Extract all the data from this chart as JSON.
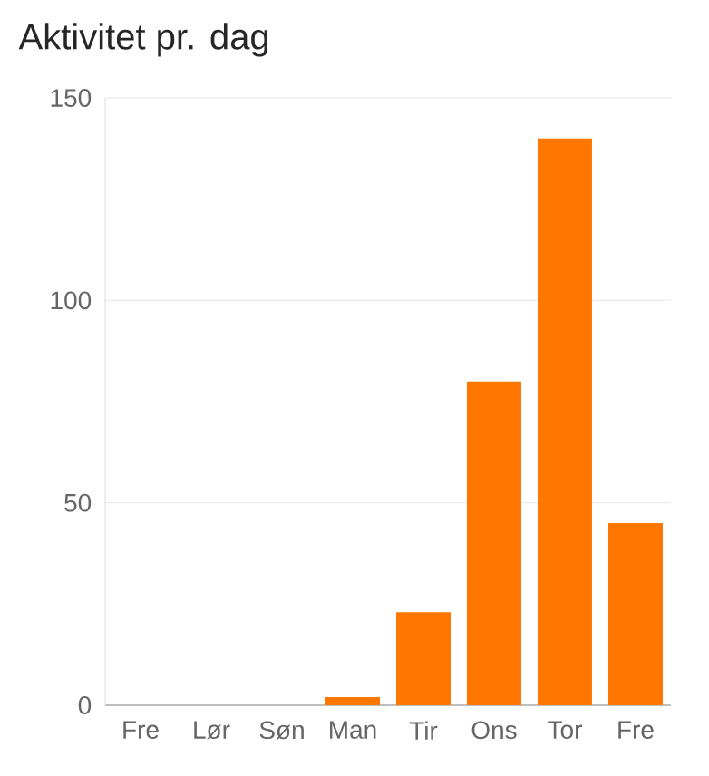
{
  "chart_data": {
    "type": "bar",
    "title": "Aktivitet pr. dag",
    "categories": [
      "Fre",
      "Lør",
      "Søn",
      "Man",
      "Tir",
      "Ons",
      "Tor",
      "Fre"
    ],
    "values": [
      0,
      0,
      0,
      2,
      23,
      80,
      140,
      45
    ],
    "color": "#ff7700",
    "ylim": [
      0,
      150
    ],
    "yticks": [
      0,
      50,
      100,
      150
    ],
    "grid": "y"
  }
}
